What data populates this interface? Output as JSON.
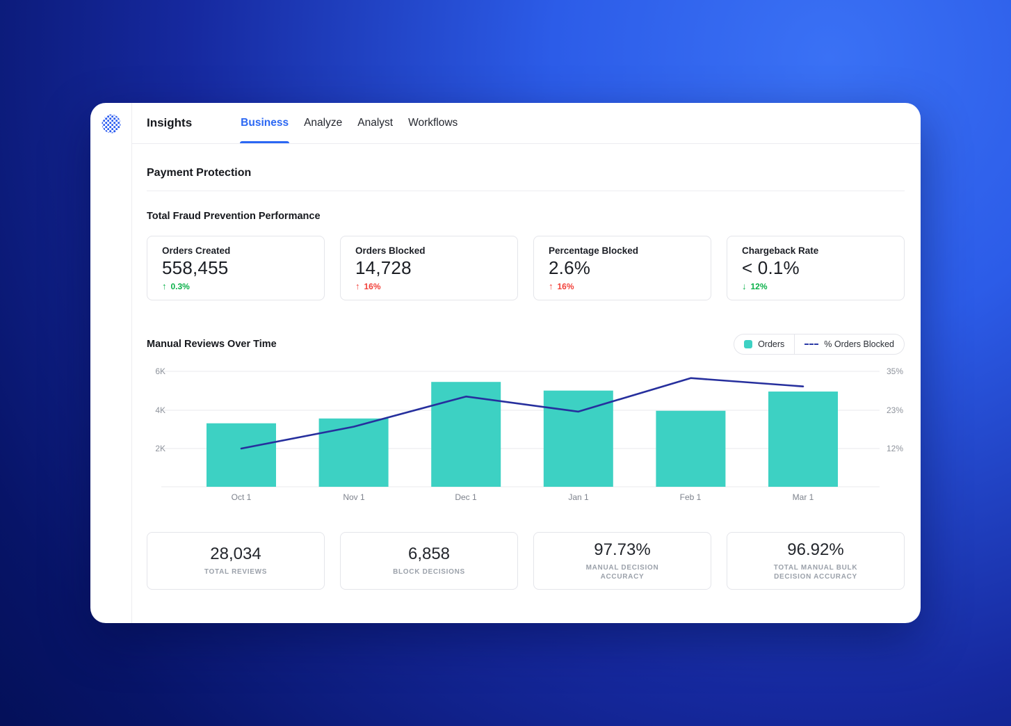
{
  "header": {
    "app_title": "Insights",
    "tabs": [
      {
        "label": "Business",
        "active": true
      },
      {
        "label": "Analyze",
        "active": false
      },
      {
        "label": "Analyst",
        "active": false
      },
      {
        "label": "Workflows",
        "active": false
      }
    ]
  },
  "page": {
    "title": "Payment Protection",
    "section_title": "Total Fraud Prevention Performance"
  },
  "kpi_cards": [
    {
      "label": "Orders Created",
      "value": "558,455",
      "arrow": "↑",
      "delta": "0.3%",
      "trend": "positive",
      "delta_color": "#0bb14a"
    },
    {
      "label": "Orders Blocked",
      "value": "14,728",
      "arrow": "↑",
      "delta": "16%",
      "trend": "negative",
      "delta_color": "#f2423b"
    },
    {
      "label": "Percentage Blocked",
      "value": "2.6%",
      "arrow": "↑",
      "delta": "16%",
      "trend": "negative",
      "delta_color": "#f2423b"
    },
    {
      "label": "Chargeback Rate",
      "value": "< 0.1%",
      "arrow": "↓",
      "delta": "12%",
      "trend": "positive",
      "delta_color": "#0bb14a"
    }
  ],
  "chart_section": {
    "title": "Manual Reviews Over Time",
    "legend": [
      {
        "label": "Orders",
        "swatch": "teal-square"
      },
      {
        "label": "% Orders Blocked",
        "swatch": "dashed-line"
      }
    ]
  },
  "chart_data": {
    "type": "bar",
    "subtype": "bar-with-line-overlay",
    "title": "Manual Reviews Over Time",
    "categories": [
      "Oct 1",
      "Nov 1",
      "Dec 1",
      "Jan 1",
      "Feb 1",
      "Mar 1"
    ],
    "series": [
      {
        "name": "Orders",
        "type": "bar",
        "axis": "left",
        "color": "#3dd1c3",
        "values": [
          3300,
          3550,
          5450,
          5000,
          3950,
          4950
        ]
      },
      {
        "name": "% Orders Blocked",
        "type": "line",
        "axis": "right",
        "color": "#262f9d",
        "values": [
          12,
          18.5,
          27.5,
          23,
          33,
          30.5
        ]
      }
    ],
    "y_left_ticks": [
      "6K",
      "4K",
      "2K"
    ],
    "y_left_tick_values": [
      6000,
      4000,
      2000
    ],
    "y_left_range": [
      0,
      6000
    ],
    "y_right_ticks": [
      "35%",
      "23%",
      "12%"
    ],
    "y_right_tick_values": [
      35,
      23,
      12
    ],
    "grid": true,
    "legend_position": "top-right"
  },
  "summary_cards": [
    {
      "value": "28,034",
      "label": "TOTAL REVIEWS"
    },
    {
      "value": "6,858",
      "label": "BLOCK DECISIONS"
    },
    {
      "value": "97.73%",
      "label": "MANUAL DECISION ACCURACY"
    },
    {
      "value": "96.92%",
      "label": "TOTAL MANUAL BULK DECISION ACCURACY"
    }
  ],
  "colors": {
    "accent_blue": "#2b67f3",
    "bar_teal": "#3dd1c3",
    "line_navy": "#262f9d",
    "positive_green": "#0bb14a",
    "negative_red": "#f2423b"
  }
}
